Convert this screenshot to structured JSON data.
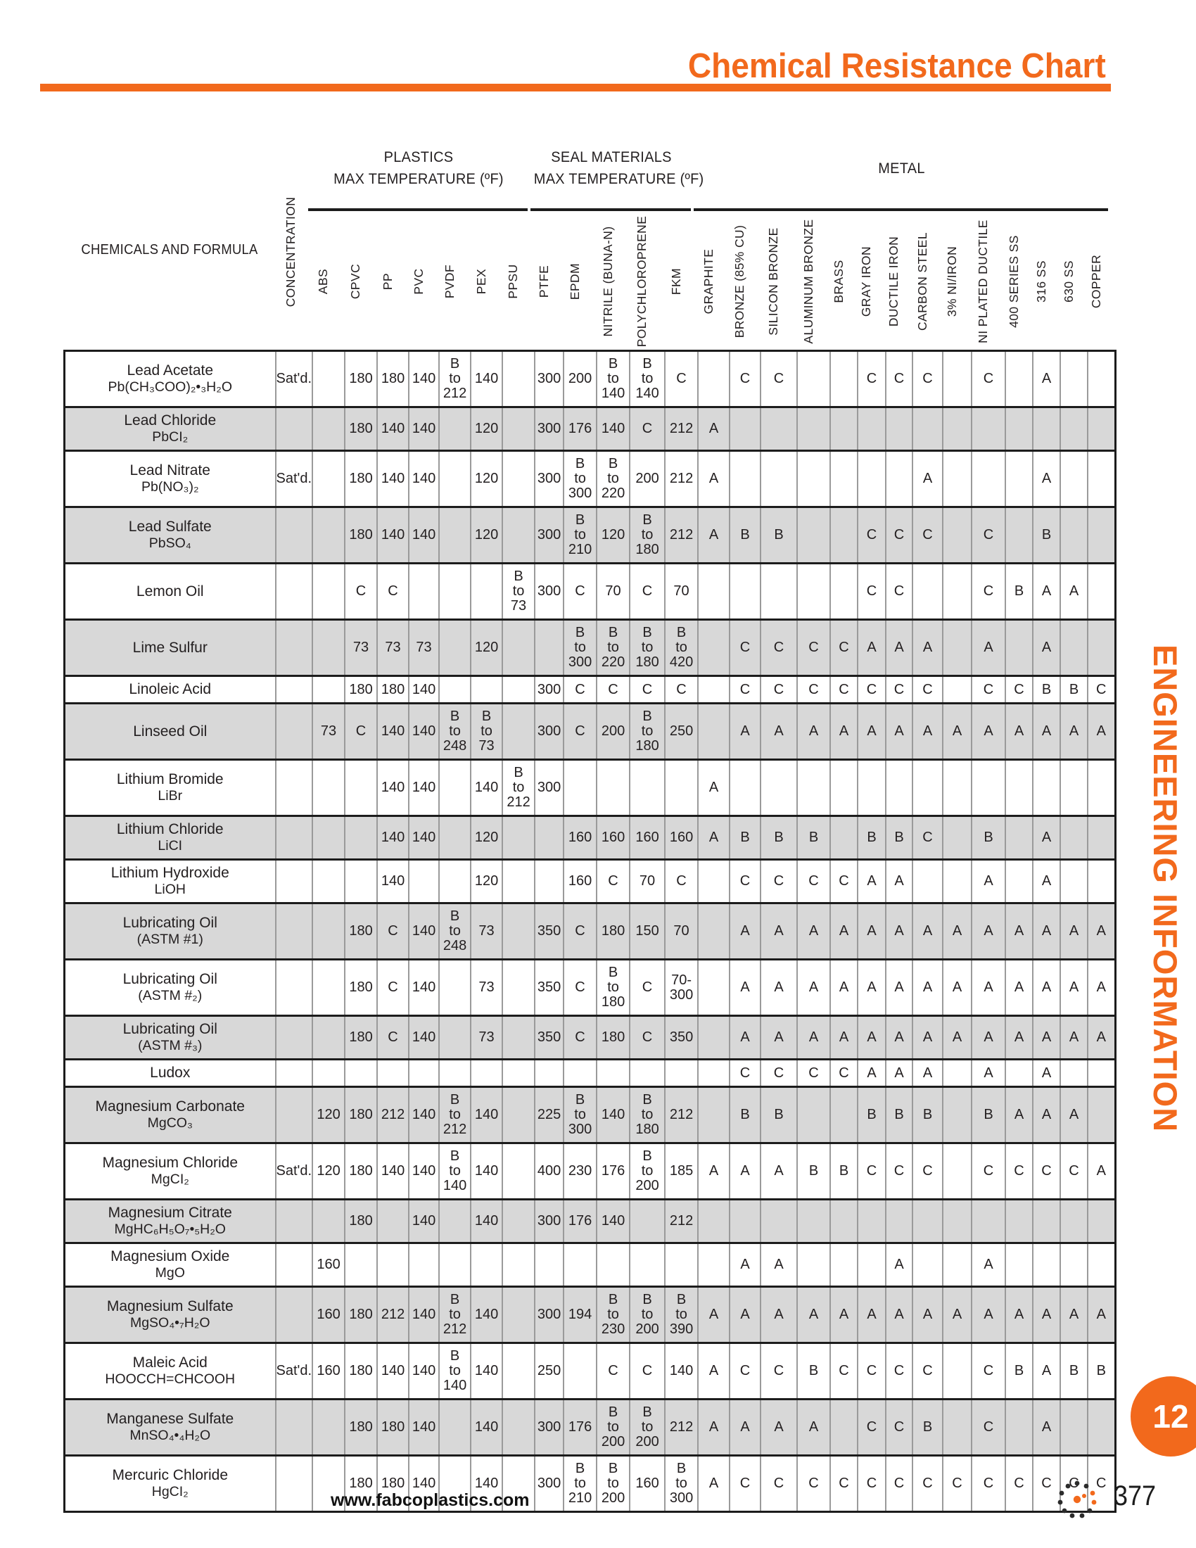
{
  "page": {
    "title": "Chemical Resistance Chart",
    "side_label": "ENGINEERING INFORMATION",
    "section_number": "12",
    "footer": {
      "website": "www.fabcoplastics.com",
      "page_number": "377",
      "logo": "fabco-dots-logo"
    },
    "colors": {
      "accent_orange": "#f2691c",
      "alt_row_gray": "#d8d8d8",
      "grid_line_gray": "#9a9a9a",
      "rule_black": "#1c1c1c"
    }
  },
  "table": {
    "corner_label": "CHEMICALS AND FORMULA",
    "groups": [
      {
        "label": "PLASTICS",
        "sublabel": "MAX TEMPERATURE (ºF)",
        "from": 1,
        "to": 7
      },
      {
        "label": "SEAL MATERIALS",
        "sublabel": "MAX TEMPERATURE (ºF)",
        "from": 8,
        "to": 12
      },
      {
        "label": "METAL",
        "sublabel": "",
        "from": 13,
        "to": 26
      }
    ],
    "columns": [
      "CONCENTRATION",
      "ABS",
      "CPVC",
      "PP",
      "PVC",
      "PVDF",
      "PEX",
      "PPSU",
      "PTFE",
      "EPDM",
      "NITRILE (BUNA-N)",
      "POLYCHLOROPRENE",
      "FKM",
      "GRAPHITE",
      "BRONZE  (85% CU)",
      "SILICON BRONZE",
      "ALUMINUM BRONZE",
      "BRASS",
      "GRAY IRON",
      "DUCTILE IRON",
      "CARBON STEEL",
      "3% NI/IRON",
      "NI PLATED DUCTILE",
      "400 SERIES SS",
      "316 SS",
      "630 SS",
      "COPPER"
    ],
    "rows": [
      {
        "name": "Lead Acetate",
        "formula": "Pb(CH₃COO)₂•₃H₂O",
        "values": [
          "Sat'd.",
          "",
          "180",
          "180",
          "140",
          "B\nto\n212",
          "140",
          "",
          "300",
          "200",
          "B\nto\n140",
          "B\nto\n140",
          "C",
          "",
          "C",
          "C",
          "",
          "",
          "C",
          "C",
          "C",
          "",
          "C",
          "",
          "A",
          "",
          ""
        ]
      },
      {
        "name": "Lead Chloride",
        "formula": "PbCI₂",
        "values": [
          "",
          "",
          "180",
          "140",
          "140",
          "",
          "120",
          "",
          "300",
          "176",
          "140",
          "C",
          "212",
          "A",
          "",
          "",
          "",
          "",
          "",
          "",
          "",
          "",
          "",
          "",
          "",
          "",
          ""
        ]
      },
      {
        "name": "Lead Nitrate",
        "formula": "Pb(NO₃)₂",
        "values": [
          "Sat'd.",
          "",
          "180",
          "140",
          "140",
          "",
          "120",
          "",
          "300",
          "B\nto\n300",
          "B\nto\n220",
          "200",
          "212",
          "A",
          "",
          "",
          "",
          "",
          "",
          "",
          "A",
          "",
          "",
          "",
          "A",
          "",
          ""
        ]
      },
      {
        "name": "Lead Sulfate",
        "formula": "PbSO₄",
        "values": [
          "",
          "",
          "180",
          "140",
          "140",
          "",
          "120",
          "",
          "300",
          "B\nto\n210",
          "120",
          "B\nto\n180",
          "212",
          "A",
          "B",
          "B",
          "",
          "",
          "C",
          "C",
          "C",
          "",
          "C",
          "",
          "B",
          "",
          ""
        ]
      },
      {
        "name": "Lemon Oil",
        "formula": "",
        "values": [
          "",
          "",
          "C",
          "C",
          "",
          "",
          "",
          "B\nto\n73",
          "300",
          "C",
          "70",
          "C",
          "70",
          "",
          "",
          "",
          "",
          "",
          "C",
          "C",
          "",
          "",
          "C",
          "B",
          "A",
          "A",
          ""
        ]
      },
      {
        "name": "Lime Sulfur",
        "formula": "",
        "values": [
          "",
          "",
          "73",
          "73",
          "73",
          "",
          "120",
          "",
          "",
          "B\nto\n300",
          "B\nto\n220",
          "B\nto\n180",
          "B\nto\n420",
          "",
          "C",
          "C",
          "C",
          "C",
          "A",
          "A",
          "A",
          "",
          "A",
          "",
          "A",
          "",
          ""
        ]
      },
      {
        "name": "Linoleic Acid",
        "formula": "",
        "values": [
          "",
          "",
          "180",
          "180",
          "140",
          "",
          "",
          "",
          "300",
          "C",
          "C",
          "C",
          "C",
          "",
          "C",
          "C",
          "C",
          "C",
          "C",
          "C",
          "C",
          "",
          "C",
          "C",
          "B",
          "B",
          "C"
        ]
      },
      {
        "name": "Linseed Oil",
        "formula": "",
        "values": [
          "",
          "73",
          "C",
          "140",
          "140",
          "B\nto\n248",
          "B\nto\n73",
          "",
          "300",
          "C",
          "200",
          "B\nto\n180",
          "250",
          "",
          "A",
          "A",
          "A",
          "A",
          "A",
          "A",
          "A",
          "A",
          "A",
          "A",
          "A",
          "A",
          "A"
        ]
      },
      {
        "name": "Lithium Bromide",
        "formula": "LiBr",
        "values": [
          "",
          "",
          "",
          "140",
          "140",
          "",
          "140",
          "B\nto\n212",
          "300",
          "",
          "",
          "",
          "",
          "A",
          "",
          "",
          "",
          "",
          "",
          "",
          "",
          "",
          "",
          "",
          "",
          "",
          ""
        ]
      },
      {
        "name": "Lithium Chloride",
        "formula": "LiCI",
        "values": [
          "",
          "",
          "",
          "140",
          "140",
          "",
          "120",
          "",
          "",
          "160",
          "160",
          "160",
          "160",
          "A",
          "B",
          "B",
          "B",
          "",
          "B",
          "B",
          "C",
          "",
          "B",
          "",
          "A",
          "",
          ""
        ]
      },
      {
        "name": "Lithium Hydroxide",
        "formula": "LiOH",
        "values": [
          "",
          "",
          "",
          "140",
          "",
          "",
          "120",
          "",
          "",
          "160",
          "C",
          "70",
          "C",
          "",
          "C",
          "C",
          "C",
          "C",
          "A",
          "A",
          "",
          "",
          "A",
          "",
          "A",
          "",
          ""
        ]
      },
      {
        "name": "Lubricating Oil",
        "formula": "(ASTM #1)",
        "values": [
          "",
          "",
          "180",
          "C",
          "140",
          "B\nto\n248",
          "73",
          "",
          "350",
          "C",
          "180",
          "150",
          "70",
          "",
          "A",
          "A",
          "A",
          "A",
          "A",
          "A",
          "A",
          "A",
          "A",
          "A",
          "A",
          "A",
          "A"
        ]
      },
      {
        "name": "Lubricating Oil",
        "formula": "(ASTM #₂)",
        "values": [
          "",
          "",
          "180",
          "C",
          "140",
          "",
          "73",
          "",
          "350",
          "C",
          "B\nto\n180",
          "C",
          "70-\n300",
          "",
          "A",
          "A",
          "A",
          "A",
          "A",
          "A",
          "A",
          "A",
          "A",
          "A",
          "A",
          "A",
          "A"
        ]
      },
      {
        "name": "Lubricating Oil",
        "formula": "(ASTM #₃)",
        "values": [
          "",
          "",
          "180",
          "C",
          "140",
          "",
          "73",
          "",
          "350",
          "C",
          "180",
          "C",
          "350",
          "",
          "A",
          "A",
          "A",
          "A",
          "A",
          "A",
          "A",
          "A",
          "A",
          "A",
          "A",
          "A",
          "A"
        ]
      },
      {
        "name": "Ludox",
        "formula": "",
        "values": [
          "",
          "",
          "",
          "",
          "",
          "",
          "",
          "",
          "",
          "",
          "",
          "",
          "",
          "",
          "C",
          "C",
          "C",
          "C",
          "A",
          "A",
          "A",
          "",
          "A",
          "",
          "A",
          "",
          ""
        ]
      },
      {
        "name": "Magnesium Carbonate",
        "formula": "MgCO₃",
        "values": [
          "",
          "120",
          "180",
          "212",
          "140",
          "B\nto\n212",
          "140",
          "",
          "225",
          "B\nto\n300",
          "140",
          "B\nto\n180",
          "212",
          "",
          "B",
          "B",
          "",
          "",
          "B",
          "B",
          "B",
          "",
          "B",
          "A",
          "A",
          "A",
          ""
        ]
      },
      {
        "name": "Magnesium Chloride",
        "formula": "MgCI₂",
        "values": [
          "Sat'd.",
          "120",
          "180",
          "140",
          "140",
          "B\nto\n140",
          "140",
          "",
          "400",
          "230",
          "176",
          "B\nto\n200",
          "185",
          "A",
          "A",
          "A",
          "B",
          "B",
          "C",
          "C",
          "C",
          "",
          "C",
          "C",
          "C",
          "C",
          "A"
        ]
      },
      {
        "name": "Magnesium Citrate",
        "formula": "MgHC₆H₅O₇•₅H₂O",
        "values": [
          "",
          "",
          "180",
          "",
          "140",
          "",
          "140",
          "",
          "300",
          "176",
          "140",
          "",
          "212",
          "",
          "",
          "",
          "",
          "",
          "",
          "",
          "",
          "",
          "",
          "",
          "",
          "",
          ""
        ]
      },
      {
        "name": "Magnesium Oxide",
        "formula": "MgO",
        "values": [
          "",
          "160",
          "",
          "",
          "",
          "",
          "",
          "",
          "",
          "",
          "",
          "",
          "",
          "",
          "A",
          "A",
          "",
          "",
          "",
          "A",
          "",
          "",
          "A",
          "",
          "",
          "",
          ""
        ]
      },
      {
        "name": "Magnesium Sulfate",
        "formula": "MgSO₄•₇H₂O",
        "values": [
          "",
          "160",
          "180",
          "212",
          "140",
          "B\nto\n212",
          "140",
          "",
          "300",
          "194",
          "B\nto\n230",
          "B\nto\n200",
          "B\nto\n390",
          "A",
          "A",
          "A",
          "A",
          "A",
          "A",
          "A",
          "A",
          "A",
          "A",
          "A",
          "A",
          "A",
          "A"
        ]
      },
      {
        "name": "Maleic Acid",
        "formula": "HOOCCH=CHCOOH",
        "values": [
          "Sat'd.",
          "160",
          "180",
          "140",
          "140",
          "B\nto\n140",
          "140",
          "",
          "250",
          "",
          "C",
          "C",
          "140",
          "A",
          "C",
          "C",
          "B",
          "C",
          "C",
          "C",
          "C",
          "",
          "C",
          "B",
          "A",
          "B",
          "B"
        ]
      },
      {
        "name": "Manganese Sulfate",
        "formula": "MnSO₄•₄H₂O",
        "values": [
          "",
          "",
          "180",
          "180",
          "140",
          "",
          "140",
          "",
          "300",
          "176",
          "B\nto\n200",
          "B\nto\n200",
          "212",
          "A",
          "A",
          "A",
          "A",
          "",
          "C",
          "C",
          "B",
          "",
          "C",
          "",
          "A",
          "",
          ""
        ]
      },
      {
        "name": "Mercuric Chloride",
        "formula": "HgCI₂",
        "values": [
          "",
          "",
          "180",
          "180",
          "140",
          "",
          "140",
          "",
          "300",
          "B\nto\n210",
          "B\nto\n200",
          "160",
          "B\nto\n300",
          "A",
          "C",
          "C",
          "C",
          "C",
          "C",
          "C",
          "C",
          "C",
          "C",
          "C",
          "C",
          "C",
          "C"
        ]
      }
    ]
  }
}
